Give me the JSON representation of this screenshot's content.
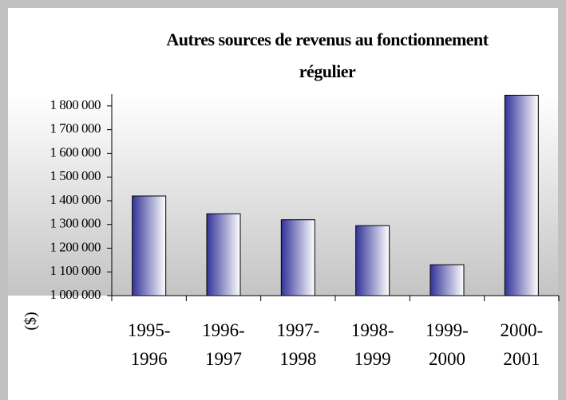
{
  "chart_data": {
    "type": "bar",
    "title": "Autres sources de revenus au fonctionnement régulier",
    "y_label": "($)",
    "categories": [
      "1995-\n1996",
      "1996-\n1997",
      "1997-\n1998",
      "1998-\n1999",
      "1999-\n2000",
      "2000-\n2001"
    ],
    "values": [
      1420000,
      1345000,
      1320000,
      1295000,
      1130000,
      1845000
    ],
    "color": "#333399",
    "ylim": [
      1000000,
      1850000
    ],
    "yticks": [
      {
        "value": 1000000,
        "label": "1 000 000"
      },
      {
        "value": 1100000,
        "label": "1 100 000"
      },
      {
        "value": 1200000,
        "label": "1 200 000"
      },
      {
        "value": 1300000,
        "label": "1 300 000"
      },
      {
        "value": 1400000,
        "label": "1 400 000"
      },
      {
        "value": 1500000,
        "label": "1 500 000"
      },
      {
        "value": 1600000,
        "label": "1 600 000"
      },
      {
        "value": 1700000,
        "label": "1 700 000"
      },
      {
        "value": 1800000,
        "label": "1 800 000"
      }
    ],
    "grid": false
  }
}
